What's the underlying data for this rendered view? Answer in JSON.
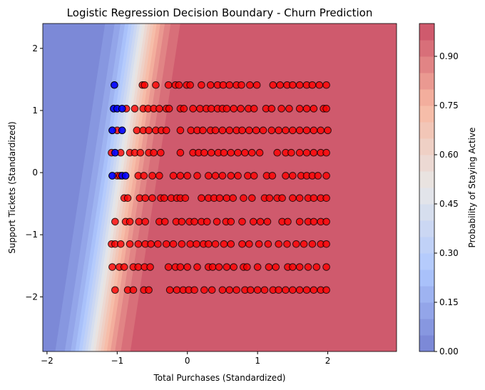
{
  "chart_data": {
    "type": "scatter",
    "title": "Logistic Regression Decision Boundary - Churn Prediction",
    "xlabel": "Total Purchases (Standardized)",
    "ylabel": "Support Tickets (Standardized)",
    "xlim": [
      -2.06,
      2.98
    ],
    "ylim": [
      -2.88,
      2.4
    ],
    "xticks": [
      -2,
      -1,
      0,
      1,
      2
    ],
    "yticks": [
      -2,
      -1,
      0,
      1,
      2
    ],
    "grid": false,
    "colormap": "coolwarm",
    "background": {
      "type": "contourf",
      "decision_function": {
        "coef_x": 5.5,
        "coef_y": -0.74,
        "intercept": 5.28
      },
      "levels": 20
    },
    "colorbar": {
      "label": "Probability of Staying Active",
      "range": [
        0,
        1
      ],
      "ticks": [
        "0.00",
        "0.15",
        "0.30",
        "0.45",
        "0.60",
        "0.75",
        "0.90"
      ]
    },
    "point_colors": {
      "class_0": "#0000ff",
      "class_1": "#ff0000"
    },
    "rows": [
      {
        "y": 1.41,
        "blue": [
          -1.04
        ],
        "red": [
          -0.64,
          -0.61,
          -0.45,
          -0.27,
          -0.17,
          -0.12,
          -0.01,
          0.04,
          0.2,
          0.33,
          0.43,
          0.51,
          0.6,
          0.7,
          0.77,
          0.89,
          0.99,
          1.22,
          1.32,
          1.42,
          1.5,
          1.6,
          1.7,
          1.78,
          1.88,
          1.98
        ]
      },
      {
        "y": 1.03,
        "blue": [
          -1.05,
          -1.0,
          -0.93
        ],
        "red": [
          -0.87,
          -0.75,
          -0.63,
          -0.56,
          -0.48,
          -0.4,
          -0.3,
          -0.26,
          -0.1,
          -0.05,
          0.08,
          0.18,
          0.27,
          0.34,
          0.43,
          0.5,
          0.56,
          0.66,
          0.76,
          0.87,
          0.95,
          1.12,
          1.2,
          1.34,
          1.45,
          1.6,
          1.7,
          1.8,
          1.94,
          1.98
        ]
      },
      {
        "y": 0.68,
        "blue": [
          -1.07,
          -0.93
        ],
        "red": [
          -1.0,
          -0.72,
          -0.63,
          -0.55,
          -0.45,
          -0.37,
          -0.3,
          -0.1,
          0.05,
          0.14,
          0.22,
          0.33,
          0.4,
          0.5,
          0.6,
          0.7,
          0.78,
          0.88,
          0.98,
          1.08,
          1.2,
          1.3,
          1.4,
          1.5,
          1.6,
          1.7,
          1.8,
          1.9,
          2.0
        ]
      },
      {
        "y": 0.32,
        "blue": [
          -1.03
        ],
        "red": [
          -1.08,
          -0.95,
          -0.82,
          -0.75,
          -0.67,
          -0.55,
          -0.48,
          -0.38,
          -0.1,
          0.08,
          0.16,
          0.24,
          0.34,
          0.44,
          0.52,
          0.62,
          0.72,
          0.82,
          0.92,
          1.03,
          1.28,
          1.4,
          1.48,
          1.6,
          1.7,
          1.8,
          1.9,
          1.98
        ]
      },
      {
        "y": -0.05,
        "blue": [
          -1.07,
          -0.93,
          -0.88
        ],
        "red": [
          -1.0,
          -0.96,
          -0.7,
          -0.62,
          -0.5,
          -0.4,
          -0.2,
          -0.1,
          0.0,
          0.14,
          0.3,
          0.4,
          0.5,
          0.62,
          0.72,
          0.86,
          0.95,
          1.13,
          1.21,
          1.4,
          1.5,
          1.62,
          1.7,
          1.78,
          1.86,
          1.98
        ]
      },
      {
        "y": -0.41,
        "blue": [],
        "red": [
          -0.9,
          -0.85,
          -0.68,
          -0.6,
          -0.5,
          -0.38,
          -0.33,
          -0.23,
          -0.15,
          -0.1,
          -0.03,
          0.2,
          0.3,
          0.38,
          0.46,
          0.56,
          0.65,
          0.8,
          0.92,
          1.1,
          1.17,
          1.28,
          1.35,
          1.5,
          1.6,
          1.72,
          1.8,
          1.9,
          1.98
        ]
      },
      {
        "y": -0.79,
        "blue": [],
        "red": [
          -1.03,
          -0.88,
          -0.82,
          -0.69,
          -0.6,
          -0.4,
          -0.32,
          -0.16,
          -0.08,
          0.03,
          0.1,
          0.2,
          0.28,
          0.42,
          0.55,
          0.62,
          0.78,
          0.94,
          1.04,
          1.14,
          1.35,
          1.43,
          1.6,
          1.72,
          1.8,
          1.9,
          1.98
        ]
      },
      {
        "y": -1.15,
        "blue": [],
        "red": [
          -1.08,
          -1.03,
          -0.95,
          -0.82,
          -0.7,
          -0.6,
          -0.52,
          -0.42,
          -0.3,
          -0.2,
          -0.08,
          0.04,
          0.13,
          0.23,
          0.3,
          0.4,
          0.52,
          0.62,
          0.78,
          0.88,
          1.02,
          1.15,
          1.3,
          1.42,
          1.55,
          1.66,
          1.78,
          1.9,
          1.98
        ]
      },
      {
        "y": -1.52,
        "blue": [],
        "red": [
          -1.07,
          -0.97,
          -0.9,
          -0.77,
          -0.7,
          -0.61,
          -0.53,
          -0.27,
          -0.17,
          -0.1,
          0.0,
          0.14,
          0.3,
          0.36,
          0.45,
          0.56,
          0.66,
          0.8,
          0.85,
          1.0,
          1.16,
          1.26,
          1.43,
          1.5,
          1.6,
          1.72,
          1.84,
          1.98
        ]
      },
      {
        "y": -1.89,
        "blue": [],
        "red": [
          -1.03,
          -0.85,
          -0.77,
          -0.62,
          -0.55,
          -0.25,
          -0.15,
          -0.06,
          0.02,
          0.1,
          0.24,
          0.35,
          0.5,
          0.6,
          0.7,
          0.82,
          0.9,
          1.0,
          1.1,
          1.22,
          1.3,
          1.4,
          1.5,
          1.6,
          1.7,
          1.8,
          1.9,
          1.98
        ]
      }
    ]
  }
}
